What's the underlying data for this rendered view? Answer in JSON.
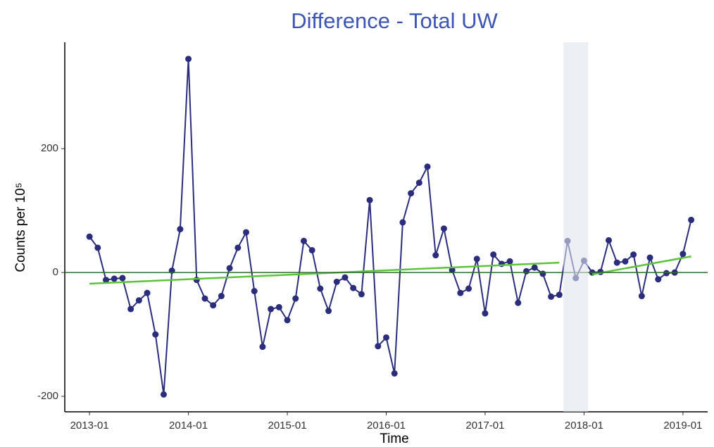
{
  "chart_data": {
    "type": "line",
    "title": "Difference - Total UW",
    "xlabel": "Time",
    "ylabel": "Counts per 10⁵",
    "x": [
      "2013-01",
      "2013-02",
      "2013-03",
      "2013-04",
      "2013-05",
      "2013-06",
      "2013-07",
      "2013-08",
      "2013-09",
      "2013-10",
      "2013-11",
      "2013-12",
      "2014-01",
      "2014-02",
      "2014-03",
      "2014-04",
      "2014-05",
      "2014-06",
      "2014-07",
      "2014-08",
      "2014-09",
      "2014-10",
      "2014-11",
      "2014-12",
      "2015-01",
      "2015-02",
      "2015-03",
      "2015-04",
      "2015-05",
      "2015-06",
      "2015-07",
      "2015-08",
      "2015-09",
      "2015-10",
      "2015-11",
      "2015-12",
      "2016-01",
      "2016-02",
      "2016-03",
      "2016-04",
      "2016-05",
      "2016-06",
      "2016-07",
      "2016-08",
      "2016-09",
      "2016-10",
      "2016-11",
      "2016-12",
      "2017-01",
      "2017-02",
      "2017-03",
      "2017-04",
      "2017-05",
      "2017-06",
      "2017-07",
      "2017-08",
      "2017-09",
      "2017-10",
      "2017-11",
      "2017-12",
      "2018-01",
      "2018-02",
      "2018-03",
      "2018-04",
      "2018-05",
      "2018-06",
      "2018-07",
      "2018-08",
      "2018-09",
      "2018-10",
      "2018-11",
      "2018-12",
      "2019-01",
      "2019-02"
    ],
    "series": [
      {
        "color": "#2b2d7c",
        "values": [
          58,
          40,
          -12,
          -10,
          -9,
          -59,
          -45,
          -33,
          -100,
          -197,
          3,
          70,
          345,
          -12,
          -42,
          -53,
          -38,
          7,
          40,
          65,
          -30,
          -120,
          -59,
          -56,
          -77,
          -42,
          51,
          36,
          -26,
          -62,
          -15,
          -8,
          -25,
          -35,
          117,
          -119,
          -105,
          -163,
          81,
          128,
          145,
          171,
          28,
          71,
          4,
          -33,
          -26,
          22,
          -66,
          29,
          14,
          18,
          -49,
          2,
          8,
          -2,
          -39,
          -36,
          51,
          -9,
          19,
          0,
          1,
          52,
          16,
          18,
          29,
          -38,
          24,
          -11,
          -1,
          0,
          30,
          85
        ]
      }
    ],
    "trend": {
      "color": "#5cc43a",
      "segments": [
        {
          "x": [
            "2013-01",
            "2017-10"
          ],
          "values": [
            -18,
            16
          ]
        },
        {
          "x": [
            "2018-02",
            "2019-02"
          ],
          "values": [
            -3,
            26
          ]
        }
      ]
    },
    "hline": {
      "value": 0,
      "color": "#2e6b2e"
    },
    "highlight": {
      "x": [
        "2017-11",
        "2018-01"
      ],
      "color": "#dfe5ec"
    },
    "xlim": [
      "2012-10",
      "2019-04"
    ],
    "xticks": [
      "2013-01",
      "2014-01",
      "2015-01",
      "2016-01",
      "2017-01",
      "2018-01",
      "2019-01"
    ],
    "ylim": [
      -225,
      372
    ],
    "yticks": [
      -200,
      0,
      200
    ]
  }
}
